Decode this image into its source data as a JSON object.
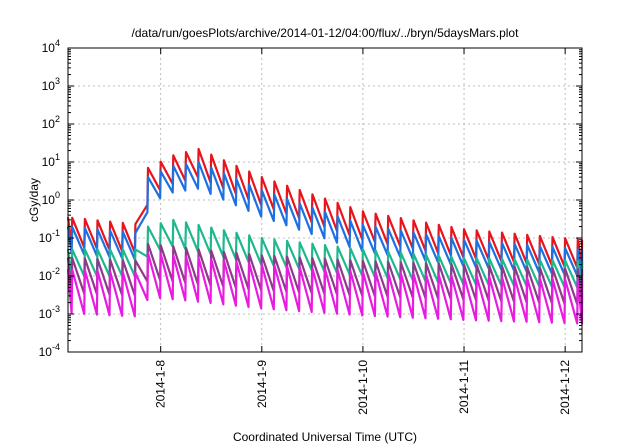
{
  "chart_data": {
    "type": "line",
    "title": "/data/run/goesPlots/archive/2014-01-12/04:00/flux/../bryn/5daysMars.plot",
    "xlabel": "Coordinated Universal Time (UTC)",
    "ylabel": "cGy/day",
    "y_scale": "log",
    "ylim": [
      0.0001,
      10000
    ],
    "y_ticks": [
      {
        "value": 0.0001,
        "base": "10",
        "exp": "-4"
      },
      {
        "value": 0.001,
        "base": "10",
        "exp": "-3"
      },
      {
        "value": 0.01,
        "base": "10",
        "exp": "-2"
      },
      {
        "value": 0.1,
        "base": "10",
        "exp": "-1"
      },
      {
        "value": 1,
        "base": "10",
        "exp": "0"
      },
      {
        "value": 10,
        "base": "10",
        "exp": "1"
      },
      {
        "value": 100,
        "base": "10",
        "exp": "2"
      },
      {
        "value": 1000,
        "base": "10",
        "exp": "3"
      },
      {
        "value": 10000,
        "base": "10",
        "exp": "4"
      }
    ],
    "xlim": [
      "2014-01-07 02:00",
      "2014-01-12 04:00"
    ],
    "x_ticks": [
      "2014-1-8",
      "2014-1-9",
      "2014-1-10",
      "2014-1-11",
      "2014-1-12"
    ],
    "x_tick_values": [
      "2014-01-08 00:00",
      "2014-01-09 00:00",
      "2014-01-10 00:00",
      "2014-01-11 00:00",
      "2014-01-12 00:00"
    ],
    "grid": true,
    "legend": "none",
    "sawtooth_period_hours": 3,
    "event_onset": "2014-01-07 21:00",
    "series": [
      {
        "color": "#e8141c",
        "peak_envelope": {
          "x": [
            "2014-01-07 02:00",
            "2014-01-07 20:00",
            "2014-01-07 21:00",
            "2014-01-08 03:00",
            "2014-01-08 09:00",
            "2014-01-09 00:00",
            "2014-01-10 00:00",
            "2014-01-11 00:00",
            "2014-01-12 04:00"
          ],
          "y": [
            0.35,
            0.22,
            7,
            15,
            22,
            4,
            0.5,
            0.17,
            0.09
          ]
        },
        "trough_ratio": 0.18
      },
      {
        "color": "#1e6fe0",
        "peak_envelope": {
          "x": [
            "2014-01-07 02:00",
            "2014-01-07 20:00",
            "2014-01-07 21:00",
            "2014-01-08 03:00",
            "2014-01-08 09:00",
            "2014-01-09 00:00",
            "2014-01-10 00:00",
            "2014-01-11 00:00",
            "2014-01-12 04:00"
          ],
          "y": [
            0.2,
            0.13,
            4,
            8,
            10,
            1.8,
            0.22,
            0.09,
            0.05
          ]
        },
        "trough_ratio": 0.2
      },
      {
        "color": "#1fb88e",
        "peak_envelope": {
          "x": [
            "2014-01-07 02:00",
            "2014-01-07 20:00",
            "2014-01-07 21:00",
            "2014-01-08 03:00",
            "2014-01-08 09:00",
            "2014-01-09 00:00",
            "2014-01-10 00:00",
            "2014-01-11 00:00",
            "2014-01-12 04:00"
          ],
          "y": [
            0.05,
            0.05,
            0.2,
            0.3,
            0.22,
            0.1,
            0.05,
            0.03,
            0.025
          ]
        },
        "trough_ratio": 0.2
      },
      {
        "color": "#8e3a8a",
        "peak_envelope": {
          "x": [
            "2014-01-07 02:00",
            "2014-01-07 20:00",
            "2014-01-07 21:00",
            "2014-01-08 03:00",
            "2014-01-08 09:00",
            "2014-01-09 00:00",
            "2014-01-10 00:00",
            "2014-01-11 00:00",
            "2014-01-12 04:00"
          ],
          "y": [
            0.03,
            0.025,
            0.07,
            0.06,
            0.05,
            0.035,
            0.025,
            0.02,
            0.015
          ]
        },
        "trough_ratio": 0.12
      },
      {
        "color": "#e81ce0",
        "peak_envelope": {
          "x": [
            "2014-01-07 02:00",
            "2014-01-07 20:00",
            "2014-01-07 21:00",
            "2014-01-08 03:00",
            "2014-01-08 09:00",
            "2014-01-09 00:00",
            "2014-01-10 00:00",
            "2014-01-11 00:00",
            "2014-01-12 04:00"
          ],
          "y": [
            0.015,
            0.012,
            0.04,
            0.035,
            0.03,
            0.02,
            0.013,
            0.01,
            0.008
          ]
        },
        "trough_ratio": 0.07
      }
    ]
  }
}
